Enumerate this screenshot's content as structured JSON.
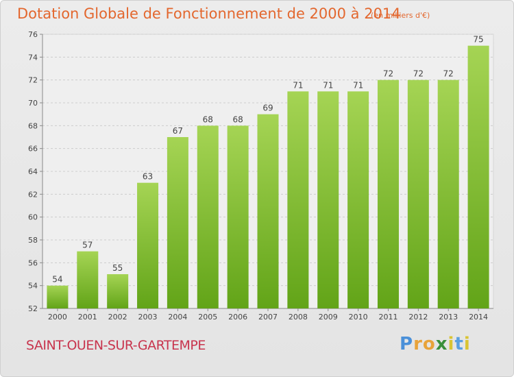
{
  "header": {
    "title": "Dotation Globale de Fonctionnement de 2000 à 2014",
    "subtitle": "(en milliers d'€)"
  },
  "footer": {
    "commune": "SAINT-OUEN-SUR-GARTEMPE",
    "brand": "Proxiti"
  },
  "colors": {
    "title": "#e3672e",
    "commune": "#c8344d",
    "bar_top": "#a5d454",
    "bar_bottom": "#62a418"
  },
  "chart_data": {
    "type": "bar",
    "title": "Dotation Globale de Fonctionnement de 2000 à 2014",
    "subtitle": "(en milliers d'€)",
    "categories": [
      "2000",
      "2001",
      "2002",
      "2003",
      "2004",
      "2005",
      "2006",
      "2007",
      "2008",
      "2009",
      "2010",
      "2011",
      "2012",
      "2013",
      "2014"
    ],
    "values": [
      54,
      57,
      55,
      63,
      67,
      68,
      68,
      69,
      71,
      71,
      71,
      72,
      72,
      72,
      75
    ],
    "ylim": [
      52,
      76
    ],
    "yticks": [
      52,
      54,
      56,
      58,
      60,
      62,
      64,
      66,
      68,
      70,
      72,
      74,
      76
    ],
    "grid": true,
    "data_labels": true
  }
}
